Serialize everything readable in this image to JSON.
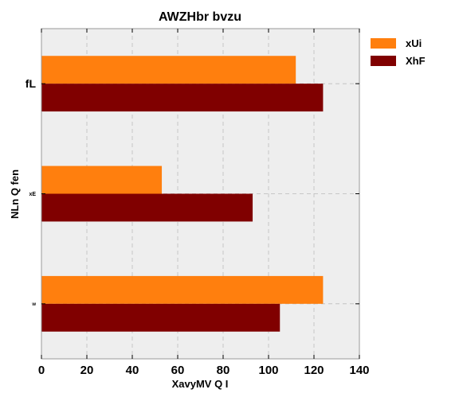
{
  "chart_data": {
    "type": "bar",
    "orientation": "horizontal",
    "title": "AWZHbr bvzu",
    "xlabel": "XavyMV Q I",
    "ylabel": "NLn Q fen",
    "categories": [
      "fL",
      "xE",
      "w"
    ],
    "series": [
      {
        "name": "xUi",
        "color": "#ff7f0e",
        "values": [
          112,
          53,
          124
        ]
      },
      {
        "name": "XhF",
        "color": "#800000",
        "values": [
          124,
          93,
          105
        ]
      }
    ],
    "xlim": [
      0,
      140
    ],
    "xticks": [
      0,
      20,
      40,
      60,
      80,
      100,
      120,
      140
    ],
    "grid": true,
    "legend_position": "outside-right-top"
  }
}
